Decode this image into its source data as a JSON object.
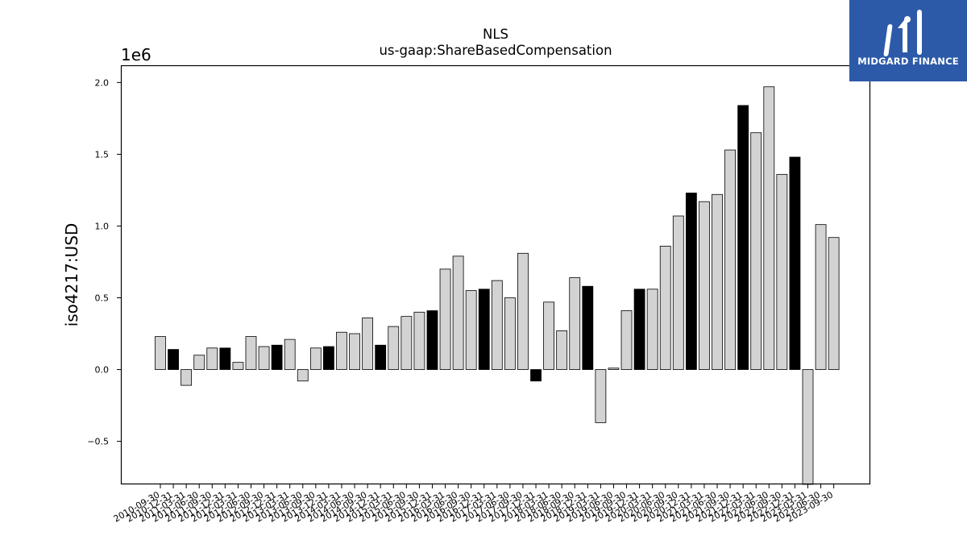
{
  "chart_data": {
    "type": "bar",
    "title": "NLS",
    "subtitle": "us-gaap:ShareBasedCompensation",
    "ylabel": "iso4217:USD",
    "xlabel": "",
    "y_multiplier_label": "1e6",
    "ylim": [
      -0.8,
      2.12
    ],
    "y_ticks": [
      -0.5,
      0.0,
      0.5,
      1.0,
      1.5,
      2.0
    ],
    "y_tick_labels": [
      "−0.5",
      "0.0",
      "0.5",
      "1.0",
      "1.5",
      "2.0"
    ],
    "grid": false,
    "categories": [
      "2010-09-30",
      "2010-12-31",
      "2011-03-31",
      "2011-06-30",
      "2011-09-30",
      "2011-12-31",
      "2012-03-31",
      "2012-06-30",
      "2012-09-30",
      "2012-12-31",
      "2013-03-31",
      "2013-06-30",
      "2013-09-30",
      "2013-12-31",
      "2014-03-31",
      "2014-06-30",
      "2014-09-30",
      "2014-12-31",
      "2015-03-31",
      "2015-06-30",
      "2015-09-30",
      "2015-12-31",
      "2016-03-31",
      "2016-06-30",
      "2016-09-30",
      "2016-12-31",
      "2017-03-31",
      "2017-06-30",
      "2017-09-30",
      "2017-12-31",
      "2018-03-31",
      "2018-06-30",
      "2018-09-30",
      "2018-12-31",
      "2019-03-31",
      "2019-06-30",
      "2019-09-30",
      "2019-12-31",
      "2020-03-31",
      "2020-06-30",
      "2020-09-30",
      "2020-12-31",
      "2021-03-31",
      "2021-06-30",
      "2021-09-30",
      "2021-12-31",
      "2022-03-31",
      "2022-06-30",
      "2022-09-30",
      "2022-12-31",
      "2023-03-31",
      "2023-06-30",
      "2023-09-30"
    ],
    "values": [
      0.23,
      0.14,
      -0.11,
      0.1,
      0.15,
      0.15,
      0.05,
      0.23,
      0.16,
      0.17,
      0.21,
      -0.08,
      0.15,
      0.16,
      0.26,
      0.25,
      0.36,
      0.17,
      0.3,
      0.37,
      0.4,
      0.41,
      0.7,
      0.79,
      0.55,
      0.56,
      0.62,
      0.5,
      0.81,
      -0.08,
      0.47,
      0.27,
      0.64,
      0.58,
      -0.37,
      0.01,
      0.41,
      0.56,
      0.56,
      0.86,
      1.07,
      1.23,
      1.17,
      1.22,
      1.53,
      1.84,
      1.65,
      1.97,
      1.36,
      1.48,
      -0.8,
      1.01,
      0.92
    ],
    "highlight": [
      false,
      true,
      false,
      false,
      false,
      true,
      false,
      false,
      false,
      true,
      false,
      false,
      false,
      true,
      false,
      false,
      false,
      true,
      false,
      false,
      false,
      true,
      false,
      false,
      false,
      true,
      false,
      false,
      false,
      true,
      false,
      false,
      false,
      true,
      false,
      false,
      false,
      true,
      false,
      false,
      false,
      true,
      false,
      false,
      false,
      true,
      false,
      false,
      false,
      true,
      false,
      false,
      false
    ],
    "colors": {
      "bar": "#d3d3d3",
      "bar_highlight": "#000000",
      "edge": "#000000"
    }
  },
  "logo": {
    "text": "MIDGARD FINANCE",
    "background": "#2c5aa8"
  }
}
